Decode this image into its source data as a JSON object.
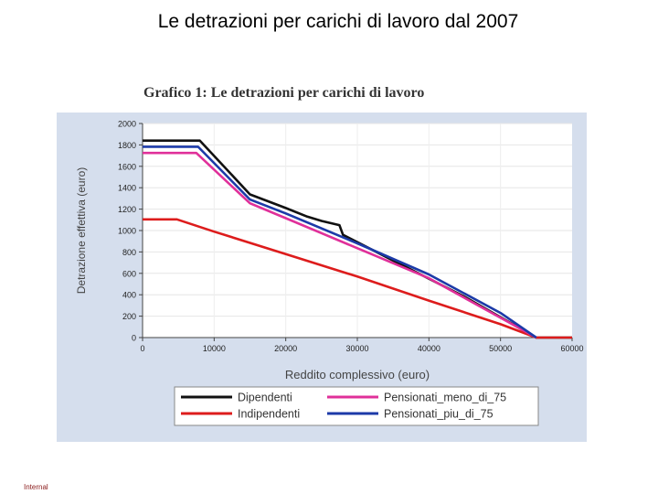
{
  "slide": {
    "title": "Le detrazioni per carichi di lavoro dal 2007",
    "footer": "Internal"
  },
  "chart_data": {
    "type": "line",
    "title": "Grafico 1: Le detrazioni per carichi di lavoro",
    "xlabel": "Reddito complessivo (euro)",
    "ylabel": "Detrazione effettiva (euro)",
    "xlim": [
      0,
      60000
    ],
    "ylim": [
      0,
      2000
    ],
    "xticks": [
      0,
      10000,
      20000,
      30000,
      40000,
      50000,
      60000
    ],
    "yticks": [
      0,
      200,
      400,
      600,
      800,
      1000,
      1200,
      1400,
      1600,
      1800,
      2000
    ],
    "grid": true,
    "legend_position": "bottom",
    "series": [
      {
        "name": "Dipendenti",
        "color": "#111111",
        "points": [
          [
            0,
            1840
          ],
          [
            8000,
            1840
          ],
          [
            15000,
            1338
          ],
          [
            20000,
            1210
          ],
          [
            23000,
            1130
          ],
          [
            25000,
            1090
          ],
          [
            27500,
            1050
          ],
          [
            28000,
            960
          ],
          [
            35000,
            720
          ],
          [
            45000,
            380
          ],
          [
            55000,
            0
          ],
          [
            60000,
            0
          ]
        ]
      },
      {
        "name": "Indipendenti",
        "color": "#dd1c1c",
        "points": [
          [
            0,
            1104
          ],
          [
            4800,
            1104
          ],
          [
            10000,
            990
          ],
          [
            20000,
            780
          ],
          [
            30000,
            570
          ],
          [
            40000,
            345
          ],
          [
            50000,
            125
          ],
          [
            55000,
            0
          ],
          [
            60000,
            0
          ]
        ]
      },
      {
        "name": "Pensionati_meno_di_75",
        "color": "#e0309a",
        "points": [
          [
            0,
            1725
          ],
          [
            7500,
            1725
          ],
          [
            15000,
            1255
          ],
          [
            20000,
            1115
          ],
          [
            30000,
            835
          ],
          [
            40000,
            555
          ],
          [
            50000,
            185
          ],
          [
            55000,
            0
          ]
        ]
      },
      {
        "name": "Pensionati_piu_di_75",
        "color": "#1c3aa8",
        "points": [
          [
            0,
            1783
          ],
          [
            7750,
            1783
          ],
          [
            15000,
            1290
          ],
          [
            20000,
            1160
          ],
          [
            30000,
            880
          ],
          [
            40000,
            590
          ],
          [
            50000,
            230
          ],
          [
            55000,
            0
          ]
        ]
      }
    ]
  }
}
